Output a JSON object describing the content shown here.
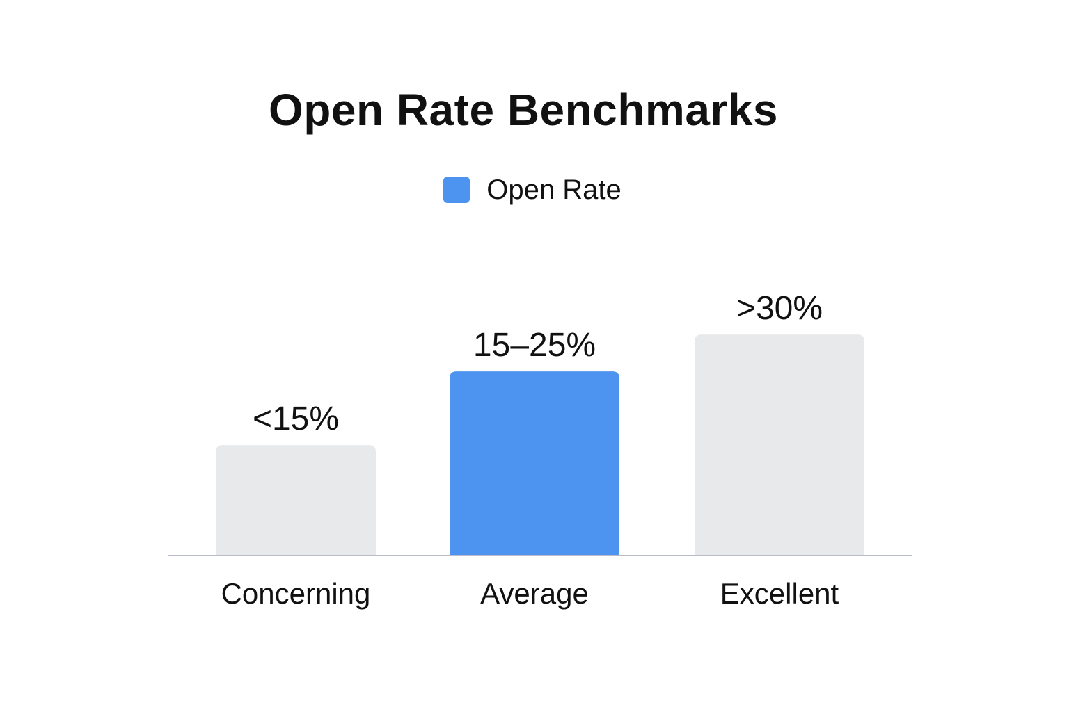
{
  "chart_data": {
    "type": "bar",
    "title": "Open Rate Benchmarks",
    "legend": {
      "placement": "top-center",
      "entries": [
        {
          "name": "Open Rate",
          "color": "#4D93F0"
        }
      ]
    },
    "categories": [
      "Concerning",
      "Average",
      "Excellent"
    ],
    "series": [
      {
        "name": "Open Rate",
        "values": [
          15,
          25,
          30
        ],
        "value_labels": [
          "<15%",
          "15–25%",
          ">30%"
        ],
        "colors": [
          "#E8E9EB",
          "#4D93F0",
          "#E8E9EB"
        ],
        "highlighted_index": 1
      }
    ],
    "ylim": [
      0,
      42
    ],
    "grid": false,
    "axis_color": "#B9BCCB"
  }
}
